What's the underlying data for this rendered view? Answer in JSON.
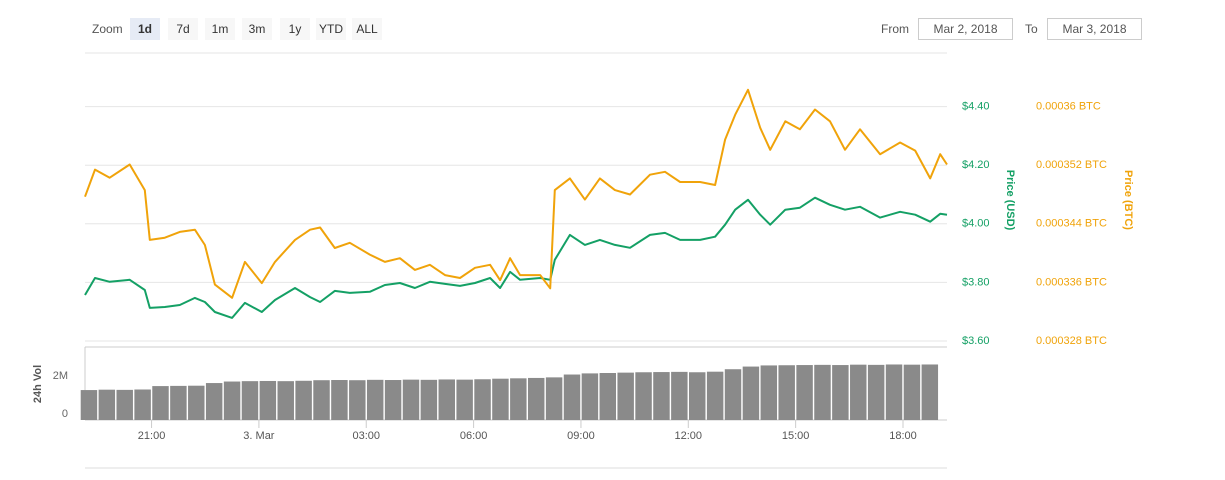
{
  "toolbar": {
    "zoom_label": "Zoom",
    "buttons": [
      "1d",
      "7d",
      "1m",
      "3m",
      "1y",
      "YTD",
      "ALL"
    ],
    "active": "1d",
    "from_label": "From",
    "from": "Mar 2, 2018",
    "to_label": "To",
    "to": "Mar 3, 2018"
  },
  "chart_data": [
    {
      "type": "line",
      "ylabel": "Price (USD)",
      "y2label": "Price (BTC)",
      "x": [
        -4.86,
        -4.58,
        -4.17,
        -3.61,
        -3.19,
        -3.05,
        -2.63,
        -2.21,
        -1.79,
        -1.51,
        -1.23,
        -0.75,
        -0.39,
        0.08,
        0.45,
        1.01,
        1.43,
        1.71,
        2.12,
        2.54,
        3.1,
        3.52,
        3.94,
        4.36,
        4.78,
        5.2,
        5.62,
        6.04,
        6.46,
        6.74,
        7.02,
        7.3,
        7.86,
        8.14,
        8.27,
        8.69,
        9.11,
        9.53,
        9.95,
        10.37,
        10.93,
        11.35,
        11.77,
        12.33,
        12.75,
        13.03,
        13.31,
        13.67,
        14.01,
        14.29,
        14.71,
        15.12,
        15.54,
        15.96,
        16.38,
        16.8,
        17.36,
        17.92,
        18.34,
        18.76,
        19.04,
        19.23
      ],
      "series": [
        {
          "color": "#14a065",
          "values": [
            3.757,
            3.815,
            3.802,
            3.809,
            3.774,
            3.713,
            3.716,
            3.723,
            3.747,
            3.733,
            3.699,
            3.679,
            3.73,
            3.699,
            3.74,
            3.781,
            3.75,
            3.733,
            3.771,
            3.764,
            3.768,
            3.791,
            3.798,
            3.781,
            3.802,
            3.795,
            3.788,
            3.798,
            3.815,
            3.781,
            3.836,
            3.809,
            3.815,
            3.809,
            3.877,
            3.962,
            3.928,
            3.945,
            3.928,
            3.918,
            3.962,
            3.969,
            3.945,
            3.945,
            3.956,
            3.997,
            4.048,
            4.082,
            4.031,
            3.997,
            4.048,
            4.055,
            4.089,
            4.065,
            4.048,
            4.058,
            4.021,
            4.041,
            4.031,
            4.007,
            4.034,
            4.031
          ]
        },
        {
          "color": "#f0a30a",
          "axis": "y2",
          "values": [
            0.0003477,
            0.0003514,
            0.0003503,
            0.0003521,
            0.0003486,
            0.0003418,
            0.0003421,
            0.0003429,
            0.0003432,
            0.0003411,
            0.0003357,
            0.0003339,
            0.0003388,
            0.0003359,
            0.0003388,
            0.0003418,
            0.0003432,
            0.0003435,
            0.0003407,
            0.0003414,
            0.0003398,
            0.0003388,
            0.0003393,
            0.0003377,
            0.0003384,
            0.000337,
            0.0003366,
            0.000338,
            0.0003384,
            0.0003363,
            0.0003393,
            0.000337,
            0.000337,
            0.0003352,
            0.0003486,
            0.0003502,
            0.0003473,
            0.0003502,
            0.0003486,
            0.000348,
            0.0003507,
            0.0003511,
            0.0003497,
            0.0003497,
            0.0003493,
            0.0003555,
            0.0003589,
            0.0003623,
            0.0003571,
            0.0003541,
            0.000358,
            0.0003569,
            0.0003596,
            0.000358,
            0.0003541,
            0.0003569,
            0.0003535,
            0.0003551,
            0.000354,
            0.0003502,
            0.0003535,
            0.0003521
          ]
        }
      ],
      "xlim": [
        -4.86,
        19.23
      ],
      "ylim": [
        3.6,
        4.6
      ],
      "yticks": [
        {
          "value": 3.6,
          "label": "$3.60"
        },
        {
          "value": 3.8,
          "label": "$3.80"
        },
        {
          "value": 4.0,
          "label": "$4.00"
        },
        {
          "value": 4.2,
          "label": "$4.20"
        },
        {
          "value": 4.4,
          "label": "$4.40"
        }
      ],
      "y2lim": [
        0.000328,
        0.000368
      ],
      "y2ticks": [
        {
          "value": 0.000328,
          "label": "0.000328 BTC"
        },
        {
          "value": 0.000336,
          "label": "0.000336 BTC"
        },
        {
          "value": 0.000344,
          "label": "0.000344 BTC"
        },
        {
          "value": 0.000352,
          "label": "0.000352 BTC"
        },
        {
          "value": 0.00036,
          "label": "0.00036 BTC"
        }
      ],
      "grid": true
    },
    {
      "type": "bar",
      "ylabel": "24h Vol",
      "color": "#8a8a8a",
      "x": [
        -4.75,
        -4.25,
        -3.75,
        -3.25,
        -2.75,
        -2.25,
        -1.75,
        -1.25,
        -0.75,
        -0.25,
        0.25,
        0.75,
        1.25,
        1.75,
        2.25,
        2.75,
        3.25,
        3.75,
        4.25,
        4.75,
        5.25,
        5.75,
        6.25,
        6.75,
        7.25,
        7.75,
        8.25,
        8.75,
        9.25,
        9.75,
        10.25,
        10.75,
        11.25,
        11.75,
        12.25,
        12.75,
        13.25,
        13.75,
        14.25,
        14.75,
        15.25,
        15.75,
        16.25,
        16.75,
        17.25,
        17.75,
        18.25,
        18.75
      ],
      "values": [
        1580000,
        1600000,
        1590000,
        1610000,
        1790000,
        1800000,
        1810000,
        1950000,
        2030000,
        2050000,
        2060000,
        2050000,
        2070000,
        2100000,
        2110000,
        2100000,
        2120000,
        2110000,
        2130000,
        2120000,
        2140000,
        2130000,
        2150000,
        2180000,
        2200000,
        2220000,
        2250000,
        2400000,
        2460000,
        2480000,
        2500000,
        2520000,
        2530000,
        2540000,
        2520000,
        2550000,
        2680000,
        2820000,
        2880000,
        2890000,
        2900000,
        2910000,
        2900000,
        2920000,
        2910000,
        2930000,
        2920000,
        2930000
      ],
      "xlim": [
        -4.86,
        19.23
      ],
      "ylim": [
        0,
        3800000
      ],
      "yticks": [
        0,
        {
          "value": 2000000,
          "label": "2M"
        }
      ],
      "xticks": [
        {
          "value": -3,
          "label": "21:00"
        },
        {
          "value": 0,
          "label": "3. Mar"
        },
        {
          "value": 3,
          "label": "03:00"
        },
        {
          "value": 6,
          "label": "06:00"
        },
        {
          "value": 9,
          "label": "09:00"
        },
        {
          "value": 12,
          "label": "12:00"
        },
        {
          "value": 15,
          "label": "15:00"
        },
        {
          "value": 18,
          "label": "18:00"
        }
      ]
    }
  ]
}
